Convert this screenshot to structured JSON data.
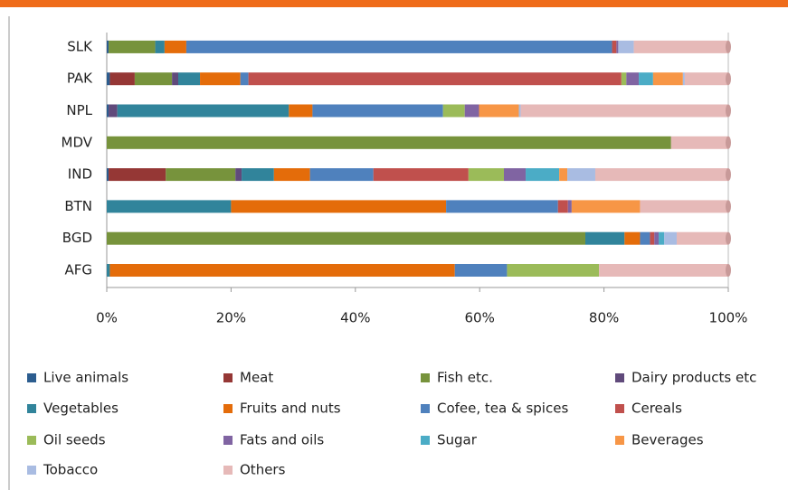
{
  "chart_data": {
    "type": "stacked-bar-horizontal-percent",
    "categories": [
      "AFG",
      "BGD",
      "BTN",
      "IND",
      "MDV",
      "NPL",
      "PAK",
      "SLK"
    ],
    "xlim": [
      0,
      100
    ],
    "xticks": [
      {
        "value": 0,
        "label": "0%"
      },
      {
        "value": 20,
        "label": "20%"
      },
      {
        "value": 40,
        "label": "40%"
      },
      {
        "value": 60,
        "label": "60%"
      },
      {
        "value": 80,
        "label": "80%"
      },
      {
        "value": 100,
        "label": "100%"
      }
    ],
    "series": [
      {
        "name": "Live animals",
        "color": "#2c5d8f",
        "values": [
          0,
          0,
          0,
          0.3,
          0,
          0.3,
          0.5,
          0.3
        ]
      },
      {
        "name": "Meat",
        "color": "#953735",
        "values": [
          0,
          0,
          0,
          9.2,
          0,
          0,
          4,
          0
        ]
      },
      {
        "name": "Fish etc.",
        "color": "#77933c",
        "values": [
          0,
          77,
          0,
          11.2,
          90.8,
          0,
          6,
          7.5
        ]
      },
      {
        "name": "Dairy products etc",
        "color": "#604a7b",
        "values": [
          0,
          0,
          0,
          1,
          0,
          1.4,
          1,
          0
        ]
      },
      {
        "name": "Vegetables",
        "color": "#31849b",
        "values": [
          0.5,
          6.3,
          20,
          5.2,
          0,
          27.6,
          3.5,
          1.5
        ]
      },
      {
        "name": "Fruits and nuts",
        "color": "#e46c0a",
        "values": [
          55.5,
          2.5,
          34.6,
          5.8,
          0,
          3.8,
          6.5,
          3.5
        ]
      },
      {
        "name": "Cofee, tea & spices",
        "color": "#4f81bd",
        "values": [
          8.4,
          1.6,
          18,
          10.2,
          0,
          21,
          1.3,
          68.5
        ]
      },
      {
        "name": "Cereals",
        "color": "#c0504d",
        "values": [
          0,
          0.7,
          1.6,
          15.3,
          0,
          0,
          60,
          0.7
        ]
      },
      {
        "name": "Oil seeds",
        "color": "#9bbb59",
        "values": [
          14.8,
          0,
          0,
          5.7,
          0,
          3.5,
          0.8,
          0
        ]
      },
      {
        "name": "Fats and oils",
        "color": "#8064a2",
        "values": [
          0,
          0.7,
          0.6,
          3.5,
          0,
          2.3,
          2,
          0.3
        ]
      },
      {
        "name": "Sugar",
        "color": "#4bacc6",
        "values": [
          0,
          0.9,
          0,
          5.4,
          0,
          0,
          2.3,
          0
        ]
      },
      {
        "name": "Beverages",
        "color": "#f79646",
        "values": [
          0,
          0,
          11,
          1.3,
          0,
          6.4,
          4.8,
          0
        ]
      },
      {
        "name": "Tobacco",
        "color": "#a9bce2",
        "values": [
          0,
          2,
          0,
          4.5,
          0,
          0.3,
          0.3,
          2.5
        ]
      },
      {
        "name": "Others",
        "color": "#e6b9b8",
        "values": [
          20.8,
          8.3,
          14.2,
          21.4,
          9.2,
          33.4,
          7,
          15.2
        ]
      }
    ]
  }
}
